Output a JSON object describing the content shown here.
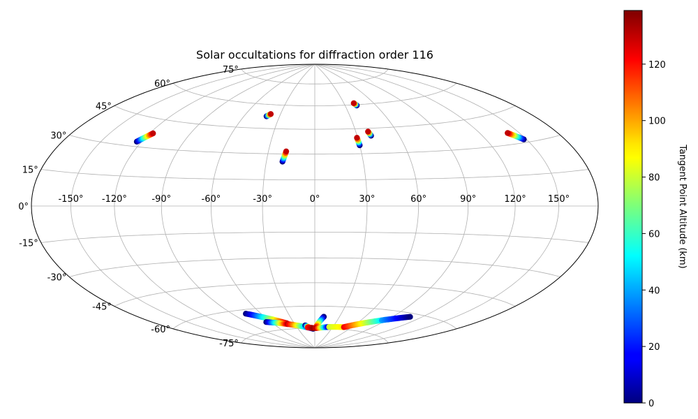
{
  "chart_data": {
    "type": "scatter",
    "projection": "hammer",
    "title": "Solar occultations for diffraction order 116",
    "grid": true,
    "lon_ticks": [
      -150,
      -120,
      -90,
      -60,
      -30,
      0,
      30,
      60,
      90,
      120,
      150
    ],
    "lon_tick_labels": [
      "-150°",
      "-120°",
      "-90°",
      "-60°",
      "-30°",
      "0°",
      "30°",
      "60°",
      "90°",
      "120°",
      "150°"
    ],
    "lat_ticks": [
      -75,
      -60,
      -45,
      -30,
      -15,
      0,
      15,
      30,
      45,
      60,
      75
    ],
    "lat_tick_labels": [
      "-75°",
      "-60°",
      "-45°",
      "-30°",
      "-15°",
      "0°",
      "15°",
      "30°",
      "45°",
      "60°",
      "75°"
    ],
    "colorbar": {
      "label": "Tangent Point Altitude (km)",
      "colormap": "jet",
      "range": [
        0,
        139
      ],
      "ticks": [
        0,
        20,
        40,
        60,
        80,
        100,
        120
      ],
      "tick_labels": [
        "0",
        "20",
        "40",
        "60",
        "80",
        "100",
        "120"
      ]
    },
    "tracks": [
      {
        "start": [
          -123.5,
          32.5
        ],
        "end": [
          -117.5,
          37.5
        ],
        "alt_start": 0,
        "alt_end": 130
      },
      {
        "start": [
          -41.0,
          52.5
        ],
        "end": [
          -38.5,
          54.0
        ],
        "alt_start": 0,
        "alt_end": 130
      },
      {
        "start": [
          -20.0,
          25.5
        ],
        "end": [
          -18.5,
          31.5
        ],
        "alt_start": 0,
        "alt_end": 130
      },
      {
        "start": [
          30.0,
          35.0
        ],
        "end": [
          29.5,
          39.5
        ],
        "alt_start": 0,
        "alt_end": 130
      },
      {
        "start": [
          40.0,
          40.5
        ],
        "end": [
          39.0,
          43.0
        ],
        "alt_start": 0,
        "alt_end": 130
      },
      {
        "start": [
          41.5,
          59.5
        ],
        "end": [
          40.0,
          61.0
        ],
        "alt_start": 0,
        "alt_end": 130
      },
      {
        "start": [
          148.0,
          31.5
        ],
        "end": [
          141.0,
          35.5
        ],
        "alt_start": 0,
        "alt_end": 130
      },
      {
        "start": [
          -76.0,
          -62.5
        ],
        "end": [
          -40.5,
          -71.0
        ],
        "alt_start": 0,
        "alt_end": 130
      },
      {
        "start": [
          -66.0,
          -69.0
        ],
        "end": [
          -40.5,
          -71.5
        ],
        "alt_start": 0,
        "alt_end": 130
      },
      {
        "start": [
          -40.5,
          -71.5
        ],
        "end": [
          -3.0,
          -75.5
        ],
        "alt_start": 130,
        "alt_end": 0
      },
      {
        "start": [
          -15.0,
          -73.0
        ],
        "end": [
          -10.0,
          -74.5
        ],
        "alt_start": 0,
        "alt_end": 130
      },
      {
        "start": [
          -12.0,
          -74.5
        ],
        "end": [
          -3.0,
          -75.0
        ],
        "alt_start": 120,
        "alt_end": 135
      },
      {
        "start": [
          11.0,
          -67.0
        ],
        "end": [
          1.0,
          -75.0
        ],
        "alt_start": 0,
        "alt_end": 130
      },
      {
        "start": [
          3.0,
          -75.0
        ],
        "end": [
          24.0,
          -74.0
        ],
        "alt_start": 130,
        "alt_end": 0
      },
      {
        "start": [
          24.0,
          -74.0
        ],
        "end": [
          48.0,
          -73.5
        ],
        "alt_start": 80,
        "alt_end": 90
      },
      {
        "start": [
          48.0,
          -73.5
        ],
        "end": [
          85.0,
          -66.5
        ],
        "alt_start": 125,
        "alt_end": 50
      },
      {
        "start": [
          85.0,
          -66.5
        ],
        "end": [
          108.0,
          -62.0
        ],
        "alt_start": 40,
        "alt_end": 0
      }
    ]
  }
}
